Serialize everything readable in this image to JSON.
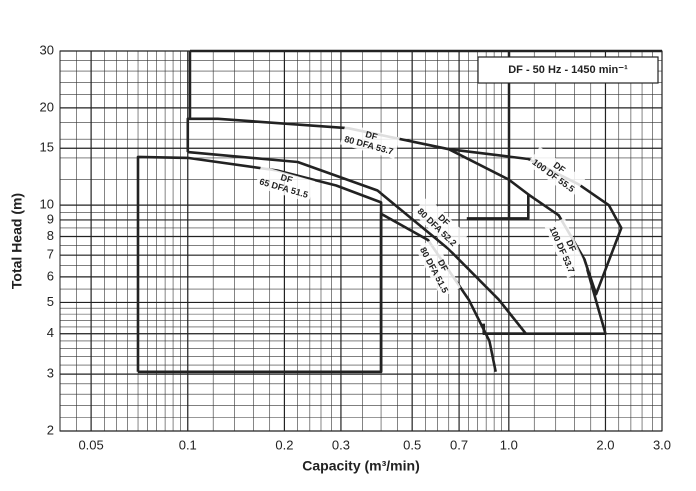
{
  "chart_data": {
    "type": "line",
    "log_x": true,
    "log_y": true,
    "grid": true,
    "minor_grid": true,
    "x_label": "Capacity (m³/min)",
    "y_label": "Total Head  (m)",
    "annotation": "DF - 50 Hz - 1450 min⁻¹",
    "curve_prefix": "DF",
    "color": "#222222",
    "xlim": [
      0.04,
      3.0
    ],
    "ylim": [
      2,
      30
    ],
    "xticks": [
      0.05,
      0.1,
      0.2,
      0.3,
      0.5,
      0.7,
      {
        "value": 1,
        "label": "1.0"
      },
      {
        "value": 2,
        "label": "2.0"
      },
      {
        "value": 3,
        "label": "3.0"
      }
    ],
    "yticks": [
      2,
      3,
      4,
      5,
      6,
      7,
      8,
      9,
      10,
      15,
      20,
      30
    ],
    "series": [
      {
        "name": "65 DFA 51.5",
        "x": [
          0.07,
          0.07,
          0.1,
          0.19,
          0.29,
          0.4,
          0.4
        ],
        "y": [
          3.05,
          14.1,
          14,
          12.8,
          11.5,
          10.2,
          3.05
        ]
      },
      {
        "name": "80 DFA 51.5",
        "x": [
          0.07,
          0.4,
          0.4,
          0.56,
          0.75,
          0.87,
          0.91
        ],
        "y": [
          3.05,
          3.05,
          9.4,
          7.8,
          5.1,
          3.8,
          3.05
        ]
      },
      {
        "name": "80 DFA 52.2",
        "x": [
          0.1,
          0.22,
          0.39,
          0.65,
          0.93,
          1.13,
          0.835,
          0.835
        ],
        "y": [
          14.6,
          13.6,
          11.1,
          7.3,
          5.1,
          4.0,
          4.0,
          4.3
        ]
      },
      {
        "name": "80 DFA 53.7",
        "x": [
          0.1,
          0.1,
          0.124,
          0.316,
          0.65,
          1.0,
          1.15,
          1.15,
          0.74
        ],
        "y": [
          14.6,
          18.5,
          18.5,
          17.3,
          14.9,
          12.0,
          10.8,
          9.1,
          9.1
        ]
      },
      {
        "name": "100 DF 53.7",
        "x": [
          1.15,
          1.43,
          1.72,
          1.91,
          2.0,
          0.835
        ],
        "y": [
          10.8,
          9.3,
          6.8,
          4.7,
          4.0,
          4.0
        ]
      },
      {
        "name": "100 DF 55.5",
        "x": [
          0.65,
          1.15,
          1.65,
          2.05,
          2.24,
          1.87,
          1.72
        ],
        "y": [
          14.9,
          13.9,
          11.6,
          10.0,
          8.5,
          5.3,
          6.8
        ]
      }
    ]
  }
}
